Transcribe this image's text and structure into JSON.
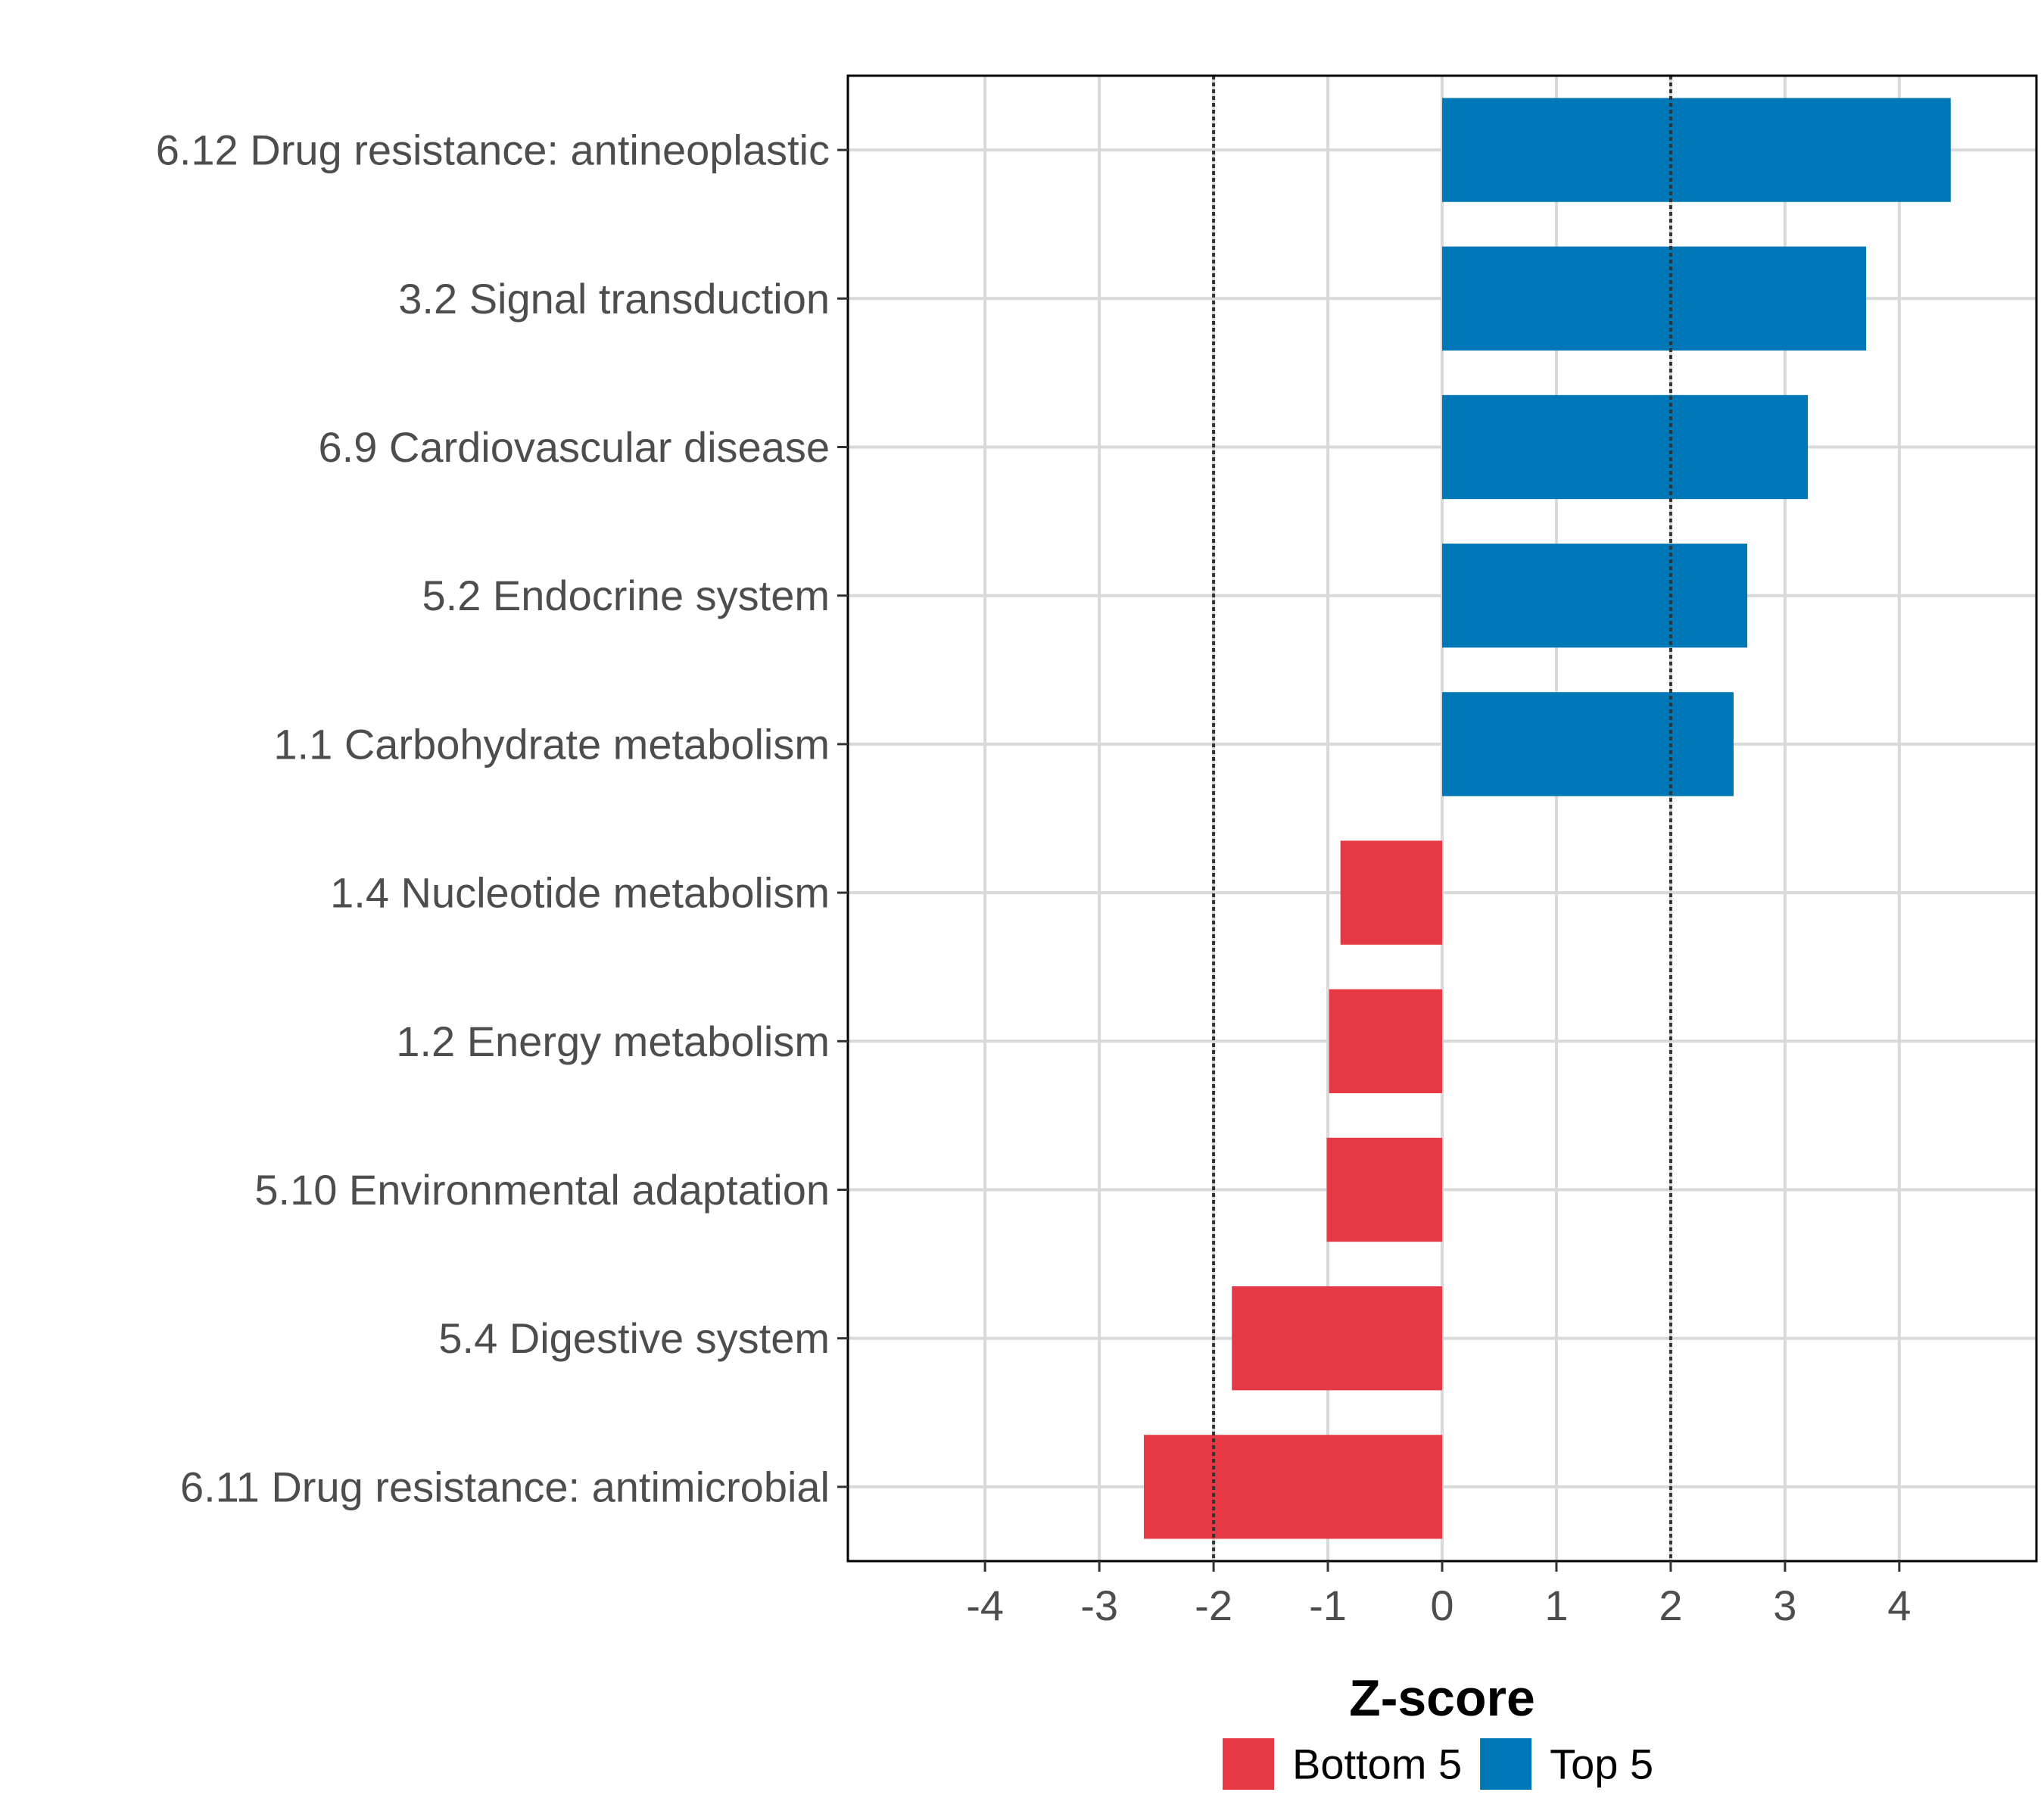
{
  "chart_data": {
    "type": "bar",
    "orientation": "horizontal",
    "title": "",
    "xlabel": "Z-score",
    "ylabel": "",
    "xlim": [
      -5.2,
      5.2
    ],
    "xticks": [
      -4,
      -3,
      -2,
      -1,
      0,
      1,
      2,
      3,
      4
    ],
    "xtick_labels": [
      "-4",
      "-3",
      "-2",
      "-1",
      "0",
      "1",
      "2",
      "3",
      "4"
    ],
    "reference_lines": [
      -2,
      2
    ],
    "grid": true,
    "categories": [
      "6.12 Drug resistance: antineoplastic",
      "3.2 Signal transduction",
      "6.9 Cardiovascular disease",
      "5.2 Endocrine system",
      "1.1 Carbohydrate metabolism",
      "1.4 Nucleotide metabolism",
      "1.2 Energy metabolism",
      "5.10 Environmental adaptation",
      "5.4 Digestive system",
      "6.11 Drug resistance: antimicrobial"
    ],
    "values": [
      4.45,
      3.71,
      3.2,
      2.67,
      2.55,
      -0.89,
      -0.99,
      -1.01,
      -1.84,
      -2.61
    ],
    "groups": [
      "Top 5",
      "Top 5",
      "Top 5",
      "Top 5",
      "Top 5",
      "Bottom 5",
      "Bottom 5",
      "Bottom 5",
      "Bottom 5",
      "Bottom 5"
    ],
    "legend": {
      "position": "bottom",
      "entries": [
        {
          "name": "Bottom 5",
          "color": "#e63946"
        },
        {
          "name": "Top 5",
          "color": "#0077b6"
        }
      ]
    },
    "colors": {
      "Bottom 5": "#e63946",
      "Top 5": "#0077b6"
    }
  }
}
